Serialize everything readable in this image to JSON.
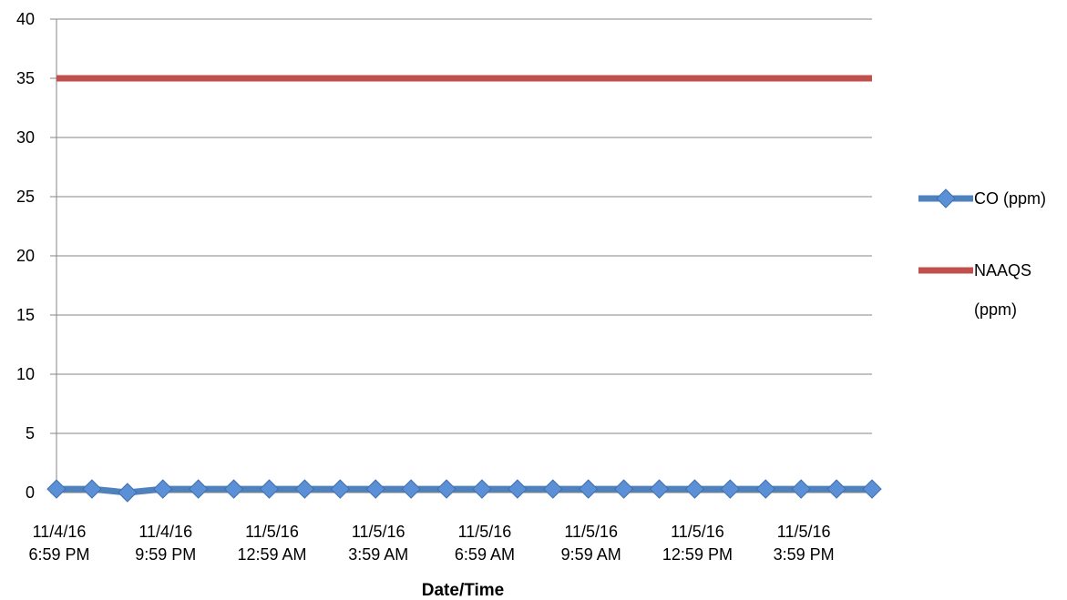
{
  "chart_data": {
    "type": "line",
    "title": "",
    "xlabel": "Date/Time",
    "ylabel": "",
    "ylim": [
      0,
      40
    ],
    "yticks": [
      "0",
      "5",
      "10",
      "15",
      "20",
      "25",
      "30",
      "35",
      "40"
    ],
    "x": [
      "11/4/16 6:59 PM",
      "11/4/16 7:59 PM",
      "11/4/16 8:59 PM",
      "11/4/16 9:59 PM",
      "11/4/16 10:59 PM",
      "11/4/16 11:59 PM",
      "11/5/16 12:59 AM",
      "11/5/16 1:59 AM",
      "11/5/16 2:59 AM",
      "11/5/16 3:59 AM",
      "11/5/16 4:59 AM",
      "11/5/16 5:59 AM",
      "11/5/16 6:59 AM",
      "11/5/16 7:59 AM",
      "11/5/16 8:59 AM",
      "11/5/16 9:59 AM",
      "11/5/16 10:59 AM",
      "11/5/16 11:59 AM",
      "11/5/16 12:59 PM",
      "11/5/16 1:59 PM",
      "11/5/16 2:59 PM",
      "11/5/16 3:59 PM",
      "11/5/16 4:59 PM",
      "11/5/16 5:59 PM"
    ],
    "tick_labels": [
      {
        "index": 0,
        "line1": "11/4/16",
        "line2": "6:59 PM"
      },
      {
        "index": 3,
        "line1": "11/4/16",
        "line2": "9:59 PM"
      },
      {
        "index": 6,
        "line1": "11/5/16",
        "line2": "12:59 AM"
      },
      {
        "index": 9,
        "line1": "11/5/16",
        "line2": "3:59 AM"
      },
      {
        "index": 12,
        "line1": "11/5/16",
        "line2": "6:59 AM"
      },
      {
        "index": 15,
        "line1": "11/5/16",
        "line2": "9:59 AM"
      },
      {
        "index": 18,
        "line1": "11/5/16",
        "line2": "12:59 PM"
      },
      {
        "index": 21,
        "line1": "11/5/16",
        "line2": "3:59 PM"
      }
    ],
    "series": [
      {
        "name": "CO (ppm)",
        "color": "#4f81bd",
        "marker": "diamond",
        "values": [
          0.3,
          0.3,
          0.0,
          0.3,
          0.3,
          0.3,
          0.3,
          0.3,
          0.3,
          0.3,
          0.3,
          0.3,
          0.3,
          0.3,
          0.3,
          0.3,
          0.3,
          0.3,
          0.3,
          0.3,
          0.3,
          0.3,
          0.3,
          0.3
        ]
      },
      {
        "name": "NAAQS (ppm)",
        "legend_lines": [
          "NAAQS",
          "(ppm)"
        ],
        "color": "#c0504d",
        "marker": "none",
        "values": [
          35,
          35,
          35,
          35,
          35,
          35,
          35,
          35,
          35,
          35,
          35,
          35,
          35,
          35,
          35,
          35,
          35,
          35,
          35,
          35,
          35,
          35,
          35,
          35
        ]
      }
    ],
    "grid": true,
    "legend": "right"
  }
}
